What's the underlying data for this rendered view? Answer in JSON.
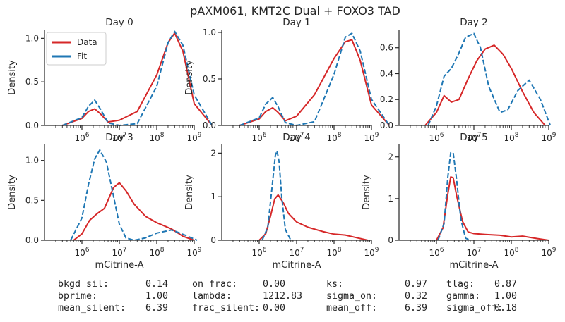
{
  "suptitle": "pAXM061, KMT2C Dual + FOXO3 TAD",
  "legend": {
    "items": [
      {
        "label": "Data",
        "color": "#d62728"
      },
      {
        "label": "Fit",
        "color": "#1f77b4"
      }
    ]
  },
  "colors": {
    "data": "#d62728",
    "fit": "#1f77b4",
    "text": "#262626"
  },
  "chart_data": [
    {
      "type": "line",
      "title": "Day 0",
      "ylabel": "Density",
      "xlabel": "",
      "xscale": "log",
      "xlim": [
        100000.0,
        1000000000.0
      ],
      "ylim": [
        0,
        1.1
      ],
      "yticks": [
        0.0,
        0.5,
        1.0
      ],
      "ytick_labels": [
        "0.0",
        "0.5",
        "1.0"
      ],
      "xticks": [
        1000000,
        10000000,
        100000000,
        1000000000
      ],
      "xtick_labels": [
        "10^6",
        "10^7",
        "10^8",
        "10^9"
      ],
      "series": [
        {
          "name": "Data",
          "style": "solid",
          "x": [
            300000,
            1000000,
            1500000,
            2200000,
            3000000,
            5000000,
            10000000,
            30000000,
            100000000,
            200000000,
            300000000,
            500000000,
            1000000000,
            3000000000
          ],
          "y": [
            0.0,
            0.08,
            0.16,
            0.19,
            0.14,
            0.04,
            0.06,
            0.16,
            0.58,
            0.95,
            1.06,
            0.85,
            0.25,
            0.0
          ]
        },
        {
          "name": "Fit",
          "style": "dashed",
          "x": [
            300000,
            1000000,
            1500000,
            2200000,
            3000000,
            5000000,
            10000000,
            30000000,
            100000000,
            200000000,
            300000000,
            500000000,
            1000000000,
            3000000000
          ],
          "y": [
            0.0,
            0.09,
            0.22,
            0.29,
            0.2,
            0.03,
            0.0,
            0.02,
            0.45,
            0.95,
            1.08,
            0.92,
            0.35,
            0.0
          ]
        }
      ]
    },
    {
      "type": "line",
      "title": "Day 1",
      "ylabel": "Density",
      "xlabel": "",
      "xscale": "log",
      "xlim": [
        100000.0,
        1000000000.0
      ],
      "ylim": [
        0,
        1.03
      ],
      "yticks": [
        0.0,
        0.5,
        1.0
      ],
      "ytick_labels": [
        "0.0",
        "0.5",
        "1.0"
      ],
      "xticks": [
        1000000,
        10000000,
        100000000,
        1000000000
      ],
      "xtick_labels": [
        "10^6",
        "10^7",
        "10^8",
        "10^9"
      ],
      "series": [
        {
          "name": "Data",
          "style": "solid",
          "x": [
            300000,
            1000000,
            1500000,
            2300000,
            3200000,
            5000000,
            10000000,
            30000000,
            100000000,
            200000000,
            300000000,
            500000000,
            1000000000,
            3000000000
          ],
          "y": [
            0.0,
            0.07,
            0.15,
            0.19,
            0.14,
            0.05,
            0.1,
            0.33,
            0.72,
            0.9,
            0.92,
            0.7,
            0.22,
            0.0
          ]
        },
        {
          "name": "Fit",
          "style": "dashed",
          "x": [
            300000,
            1000000,
            1500000,
            2300000,
            3200000,
            5000000,
            10000000,
            30000000,
            100000000,
            200000000,
            300000000,
            500000000,
            1000000000,
            3000000000
          ],
          "y": [
            0.0,
            0.08,
            0.23,
            0.3,
            0.2,
            0.03,
            0.0,
            0.04,
            0.55,
            0.95,
            0.99,
            0.8,
            0.28,
            0.0
          ]
        }
      ]
    },
    {
      "type": "line",
      "title": "Day 2",
      "ylabel": "",
      "xlabel": "",
      "xscale": "log",
      "xlim": [
        100000.0,
        1000000000.0
      ],
      "ylim": [
        0,
        0.74
      ],
      "yticks": [
        0.0,
        0.2,
        0.4,
        0.6
      ],
      "ytick_labels": [
        "0.0",
        "0.2",
        "0.4",
        "0.6"
      ],
      "xticks": [
        1000000,
        10000000,
        100000000,
        1000000000
      ],
      "xtick_labels": [
        "10^6",
        "10^7",
        "10^8",
        "10^9"
      ],
      "series": [
        {
          "name": "Data",
          "style": "solid",
          "x": [
            500000,
            1000000,
            1600000,
            2500000,
            4000000,
            7000000,
            12000000,
            20000000,
            35000000,
            60000000,
            100000000,
            200000000,
            400000000,
            800000000
          ],
          "y": [
            0.0,
            0.1,
            0.23,
            0.18,
            0.2,
            0.36,
            0.5,
            0.59,
            0.62,
            0.55,
            0.44,
            0.26,
            0.1,
            0.0
          ]
        },
        {
          "name": "Fit",
          "style": "dashed",
          "x": [
            600000,
            1000000,
            1600000,
            2500000,
            4000000,
            6000000,
            10000000,
            15000000,
            25000000,
            50000000,
            80000000,
            150000000,
            300000000,
            600000000,
            1100000000
          ],
          "y": [
            0.0,
            0.15,
            0.38,
            0.44,
            0.56,
            0.68,
            0.71,
            0.6,
            0.3,
            0.1,
            0.12,
            0.27,
            0.35,
            0.2,
            0.0
          ]
        }
      ]
    },
    {
      "type": "line",
      "title": "Day 3",
      "ylabel": "Density",
      "xlabel": "mCitrine-A",
      "xscale": "log",
      "xlim": [
        100000.0,
        1000000000.0
      ],
      "ylim": [
        0,
        1.2
      ],
      "yticks": [
        0.0,
        0.5,
        1.0
      ],
      "ytick_labels": [
        "0.0",
        "0.5",
        "1.0"
      ],
      "xticks": [
        1000000,
        10000000,
        100000000,
        1000000000
      ],
      "xtick_labels": [
        "10^6",
        "10^7",
        "10^8",
        "10^9"
      ],
      "series": [
        {
          "name": "Data",
          "style": "solid",
          "x": [
            600000,
            1000000,
            1600000,
            2500000,
            4000000,
            7000000,
            10000000,
            15000000,
            25000000,
            50000000,
            100000000,
            250000000,
            500000000,
            1000000000
          ],
          "y": [
            0.0,
            0.08,
            0.25,
            0.33,
            0.4,
            0.66,
            0.72,
            0.62,
            0.45,
            0.3,
            0.22,
            0.14,
            0.05,
            0.0
          ]
        },
        {
          "name": "Fit",
          "style": "dashed",
          "x": [
            500000,
            1000000,
            1500000,
            2200000,
            3000000,
            4500000,
            7000000,
            10000000,
            15000000,
            25000000,
            50000000,
            100000000,
            250000000,
            600000000,
            1200000000
          ],
          "y": [
            0.0,
            0.28,
            0.7,
            1.02,
            1.13,
            0.98,
            0.55,
            0.2,
            0.03,
            0.0,
            0.03,
            0.09,
            0.13,
            0.06,
            0.0
          ]
        }
      ]
    },
    {
      "type": "line",
      "title": "Day 4",
      "ylabel": "Density",
      "xlabel": "mCitrine-A",
      "xscale": "log",
      "xlim": [
        100000.0,
        1000000000.0
      ],
      "ylim": [
        0,
        2.2
      ],
      "yticks": [
        0,
        1,
        2
      ],
      "ytick_labels": [
        "0",
        "1",
        "2"
      ],
      "xticks": [
        1000000,
        10000000,
        100000000,
        1000000000
      ],
      "xtick_labels": [
        "10^6",
        "10^7",
        "10^8",
        "10^9"
      ],
      "series": [
        {
          "name": "Data",
          "style": "solid",
          "x": [
            1000000,
            1500000,
            2000000,
            2600000,
            3200000,
            4500000,
            6000000,
            10000000,
            20000000,
            50000000,
            100000000,
            200000000,
            400000000,
            800000000
          ],
          "y": [
            0.0,
            0.15,
            0.55,
            0.95,
            1.04,
            0.85,
            0.62,
            0.42,
            0.3,
            0.2,
            0.14,
            0.12,
            0.06,
            0.0
          ]
        },
        {
          "name": "Fit",
          "style": "dashed",
          "x": [
            1200000,
            1700000,
            2200000,
            2700000,
            3000000,
            3400000,
            4000000,
            5000000,
            7000000
          ],
          "y": [
            0.0,
            0.3,
            1.2,
            1.95,
            2.05,
            1.8,
            1.0,
            0.25,
            0.0
          ]
        }
      ]
    },
    {
      "type": "line",
      "title": "Day 5",
      "ylabel": "Density",
      "xlabel": "mCitrine-A",
      "xscale": "log",
      "xlim": [
        100000.0,
        1000000000.0
      ],
      "ylim": [
        0,
        2.3
      ],
      "yticks": [
        0,
        1,
        2
      ],
      "ytick_labels": [
        "0",
        "1",
        "2"
      ],
      "xticks": [
        1000000,
        10000000,
        100000000,
        1000000000
      ],
      "xtick_labels": [
        "10^6",
        "10^7",
        "10^8",
        "10^9"
      ],
      "series": [
        {
          "name": "Data",
          "style": "solid",
          "x": [
            1000000,
            1500000,
            2000000,
            2400000,
            2800000,
            3500000,
            5000000,
            7000000,
            10000000,
            20000000,
            50000000,
            100000000,
            200000000,
            500000000,
            1000000000
          ],
          "y": [
            0.0,
            0.3,
            1.1,
            1.52,
            1.5,
            1.05,
            0.45,
            0.2,
            0.16,
            0.14,
            0.12,
            0.08,
            0.1,
            0.04,
            0.0
          ]
        },
        {
          "name": "Fit",
          "style": "dashed",
          "x": [
            1100000,
            1600000,
            2000000,
            2400000,
            2800000,
            3400000,
            4500000,
            6000000,
            8000000
          ],
          "y": [
            0.0,
            0.4,
            1.5,
            2.1,
            2.1,
            1.5,
            0.5,
            0.05,
            0.0
          ]
        }
      ]
    }
  ],
  "params": {
    "rows": [
      [
        {
          "key": "bkgd sil:",
          "value": "0.14"
        },
        {
          "key": "on frac:",
          "value": "0.00"
        },
        {
          "key": "ks:",
          "value": "0.97"
        },
        {
          "key": "tlag:",
          "value": "0.87"
        }
      ],
      [
        {
          "key": "bprime:",
          "value": "1.00"
        },
        {
          "key": "lambda:",
          "value": "1212.83"
        },
        {
          "key": "sigma_on:",
          "value": "0.32"
        },
        {
          "key": "gamma:",
          "value": "1.00"
        }
      ],
      [
        {
          "key": "mean_silent:",
          "value": "6.39"
        },
        {
          "key": "frac_silent:",
          "value": "0.00"
        },
        {
          "key": "mean_off:",
          "value": "6.39"
        },
        {
          "key": "sigma_off:",
          "value": "0.18"
        }
      ]
    ]
  }
}
